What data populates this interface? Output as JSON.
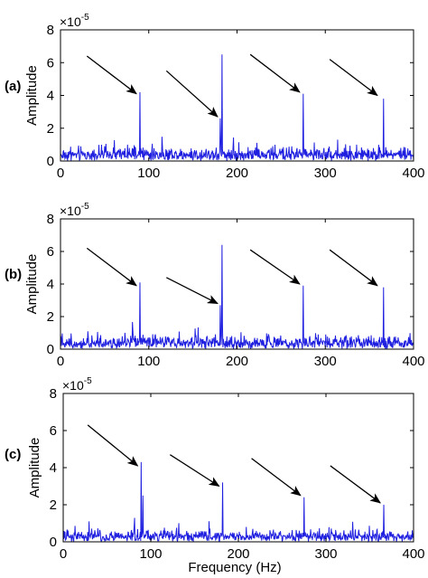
{
  "figure": {
    "xlabel": "Frequency (Hz)"
  },
  "chart_data": [
    {
      "type": "line",
      "panel_label": "(a)",
      "ylabel": "Amplitude",
      "y_multiplier": "×10",
      "y_exponent": "-5",
      "xlabel": "",
      "xlim": [
        0,
        400
      ],
      "ylim": [
        0,
        8
      ],
      "xticks": [
        "0",
        "100",
        "200",
        "300",
        "400"
      ],
      "yticks": [
        "0",
        "2",
        "4",
        "6",
        "8"
      ],
      "line_color": "#1f1fe0",
      "peaks": [
        {
          "x": 90,
          "y": 4.2
        },
        {
          "x": 181,
          "y": 2.6
        },
        {
          "x": 183,
          "y": 6.5
        },
        {
          "x": 275,
          "y": 4.1
        },
        {
          "x": 366,
          "y": 3.8
        }
      ],
      "arrows": [
        {
          "from": [
            30,
            6.4
          ],
          "to": [
            86,
            4.1
          ]
        },
        {
          "from": [
            120,
            5.5
          ],
          "to": [
            178,
            2.7
          ]
        },
        {
          "from": [
            215,
            6.5
          ],
          "to": [
            271,
            4.2
          ]
        },
        {
          "from": [
            305,
            6.2
          ],
          "to": [
            359,
            4.0
          ]
        }
      ],
      "noise_level": 0.8
    },
    {
      "type": "line",
      "panel_label": "(b)",
      "ylabel": "Amplitude",
      "y_multiplier": "×10",
      "y_exponent": "-5",
      "xlabel": "",
      "xlim": [
        0,
        400
      ],
      "ylim": [
        0,
        8
      ],
      "xticks": [
        "0",
        "100",
        "200",
        "300",
        "400"
      ],
      "yticks": [
        "0",
        "2",
        "4",
        "6",
        "8"
      ],
      "line_color": "#1f1fe0",
      "peaks": [
        {
          "x": 90,
          "y": 4.1
        },
        {
          "x": 181,
          "y": 2.7
        },
        {
          "x": 183,
          "y": 6.4
        },
        {
          "x": 275,
          "y": 3.9
        },
        {
          "x": 366,
          "y": 3.8
        }
      ],
      "arrows": [
        {
          "from": [
            30,
            6.2
          ],
          "to": [
            86,
            3.9
          ]
        },
        {
          "from": [
            120,
            4.4
          ],
          "to": [
            178,
            2.8
          ]
        },
        {
          "from": [
            215,
            6.1
          ],
          "to": [
            271,
            4.0
          ]
        },
        {
          "from": [
            305,
            6.1
          ],
          "to": [
            359,
            3.9
          ]
        }
      ],
      "noise_level": 0.8
    },
    {
      "type": "line",
      "panel_label": "(c)",
      "ylabel": "Amplitude",
      "y_multiplier": "×10",
      "y_exponent": "-5",
      "xlabel": "Frequency (Hz)",
      "xlim": [
        0,
        400
      ],
      "ylim": [
        0,
        8
      ],
      "xticks": [
        "0",
        "100",
        "200",
        "300",
        "400"
      ],
      "yticks": [
        "0",
        "2",
        "4",
        "6",
        "8"
      ],
      "line_color": "#1f1fe0",
      "peaks": [
        {
          "x": 89,
          "y": 4.3
        },
        {
          "x": 91,
          "y": 2.5
        },
        {
          "x": 182,
          "y": 3.2
        },
        {
          "x": 275,
          "y": 2.4
        },
        {
          "x": 366,
          "y": 2.0
        }
      ],
      "arrows": [
        {
          "from": [
            28,
            6.3
          ],
          "to": [
            85,
            4.1
          ]
        },
        {
          "from": [
            122,
            4.7
          ],
          "to": [
            178,
            3.0
          ]
        },
        {
          "from": [
            215,
            4.5
          ],
          "to": [
            271,
            2.5
          ]
        },
        {
          "from": [
            305,
            4.1
          ],
          "to": [
            362,
            2.1
          ]
        }
      ],
      "noise_level": 0.6
    }
  ]
}
